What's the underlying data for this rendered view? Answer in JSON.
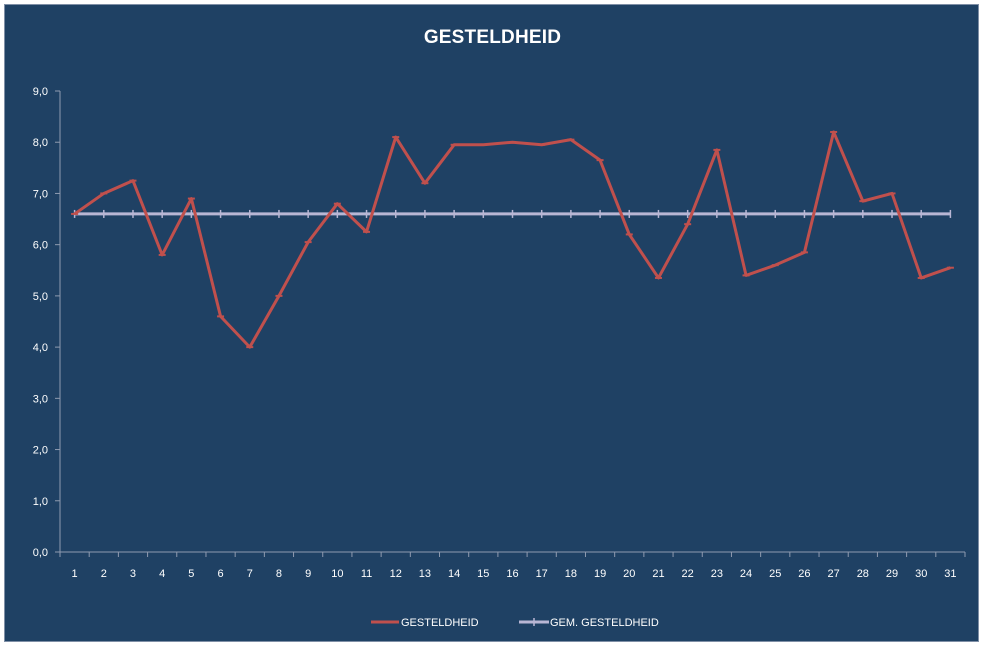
{
  "chart_data": {
    "type": "line",
    "title": "GESTELDHEID",
    "xlabel": "",
    "ylabel": "",
    "categories": [
      "1",
      "2",
      "3",
      "4",
      "5",
      "6",
      "7",
      "8",
      "9",
      "10",
      "11",
      "12",
      "13",
      "14",
      "15",
      "16",
      "17",
      "18",
      "19",
      "20",
      "21",
      "22",
      "23",
      "24",
      "25",
      "26",
      "27",
      "28",
      "29",
      "30",
      "31"
    ],
    "ylim": [
      0,
      9
    ],
    "yticks": [
      "0,0",
      "1,0",
      "2,0",
      "3,0",
      "4,0",
      "5,0",
      "6,0",
      "7,0",
      "8,0",
      "9,0"
    ],
    "grid": false,
    "legend_position": "bottom",
    "series": [
      {
        "name": "GESTELDHEID",
        "color": "#c0504d",
        "values": [
          6.6,
          7.0,
          7.25,
          5.8,
          6.9,
          4.6,
          4.0,
          5.0,
          6.05,
          6.8,
          6.25,
          8.1,
          7.2,
          7.95,
          7.95,
          8.0,
          7.95,
          8.05,
          7.65,
          6.2,
          5.35,
          6.4,
          7.85,
          5.4,
          5.6,
          5.85,
          8.2,
          6.85,
          7.0,
          5.35,
          5.55
        ]
      },
      {
        "name": "GEM. GESTELDHEID",
        "color": "#b8b6d4",
        "values": [
          6.6,
          6.6,
          6.6,
          6.6,
          6.6,
          6.6,
          6.6,
          6.6,
          6.6,
          6.6,
          6.6,
          6.6,
          6.6,
          6.6,
          6.6,
          6.6,
          6.6,
          6.6,
          6.6,
          6.6,
          6.6,
          6.6,
          6.6,
          6.6,
          6.6,
          6.6,
          6.6,
          6.6,
          6.6,
          6.6,
          6.6
        ]
      }
    ]
  }
}
